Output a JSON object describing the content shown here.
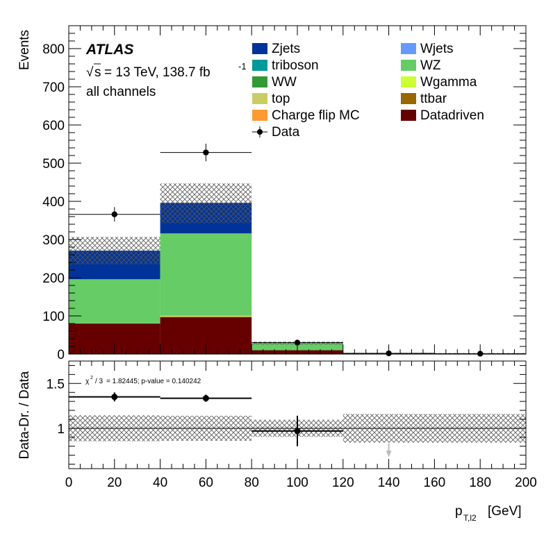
{
  "chart_data": {
    "type": "bar",
    "subtype": "stacked-histogram-with-ratio",
    "experiment": "ATLAS",
    "energy_label": "= 13 TeV, 138.7 fb",
    "energy_exp": "-1",
    "sqrt_s": "s",
    "channel_label": "all channels",
    "xlabel_main": "p",
    "xlabel_sub": "T,l2",
    "xlabel_unit": "[GeV]",
    "ylabel": "Events",
    "ratio_ylabel": "Data-Dr. / Data",
    "xlim": [
      0,
      200
    ],
    "ylim": [
      0,
      860
    ],
    "ratio_ylim": [
      0.55,
      1.75
    ],
    "x_ticks": [
      "0",
      "20",
      "40",
      "60",
      "80",
      "100",
      "120",
      "140",
      "160",
      "180",
      "200"
    ],
    "y_ticks": [
      "0",
      "100",
      "200",
      "300",
      "400",
      "500",
      "600",
      "700",
      "800"
    ],
    "ratio_y_ticks": [
      "1",
      "1.5"
    ],
    "bin_edges": [
      0,
      40,
      80,
      120,
      200
    ],
    "stack": [
      {
        "name": "Datadriven",
        "color": "#660000",
        "values": [
          80,
          97,
          10,
          1
        ]
      },
      {
        "name": "top",
        "color": "#cccc66",
        "values": [
          1,
          4,
          0,
          0
        ]
      },
      {
        "name": "WZ",
        "color": "#66cc66",
        "values": [
          115,
          215,
          20,
          1
        ]
      },
      {
        "name": "Zjets",
        "color": "#003399",
        "values": [
          75,
          80,
          1,
          0
        ]
      }
    ],
    "uncertainty_band": {
      "up": [
        307,
        447,
        33,
        3
      ],
      "down": [
        235,
        343,
        25,
        1
      ]
    },
    "data": {
      "x": [
        20,
        60,
        100,
        140,
        180
      ],
      "y": [
        366,
        528,
        30,
        2,
        1
      ],
      "xerr": [
        20,
        20,
        20,
        20,
        20
      ],
      "yerr": [
        19,
        23,
        5,
        1,
        1
      ]
    },
    "ratio": {
      "x": [
        20,
        60,
        100
      ],
      "y": [
        1.35,
        1.335,
        0.97
      ],
      "xerr": [
        20,
        20,
        20
      ],
      "yerr": [
        0.05,
        0.04,
        0.17
      ],
      "band": [
        [
          0,
          40,
          0.855,
          1.145
        ],
        [
          40,
          80,
          0.86,
          1.14
        ],
        [
          80,
          120,
          0.905,
          1.095
        ],
        [
          120,
          200,
          0.84,
          1.16
        ]
      ],
      "arrow_x": 140
    },
    "chi2_label": "= 1.82445; p-value = 0.140242",
    "chi2_prefix": "χ",
    "chi2_exp": "2",
    "chi2_div": "/ 3",
    "legend": [
      {
        "name": "Zjets",
        "color": "#003399",
        "kind": "box"
      },
      {
        "name": "Wjets",
        "color": "#6699ff",
        "kind": "box"
      },
      {
        "name": "triboson",
        "color": "#009999",
        "kind": "box"
      },
      {
        "name": "WZ",
        "color": "#66cc66",
        "kind": "box"
      },
      {
        "name": "WW",
        "color": "#339933",
        "kind": "box"
      },
      {
        "name": "Wgamma",
        "color": "#ccff33",
        "kind": "box"
      },
      {
        "name": "top",
        "color": "#cccc66",
        "kind": "box"
      },
      {
        "name": "ttbar",
        "color": "#996600",
        "kind": "box"
      },
      {
        "name": "Charge flip MC",
        "color": "#ff9933",
        "kind": "box"
      },
      {
        "name": "Datadriven",
        "color": "#660000",
        "kind": "box"
      },
      {
        "name": "Data",
        "color": "#000000",
        "kind": "marker"
      }
    ],
    "legend_placement": "top-right"
  }
}
